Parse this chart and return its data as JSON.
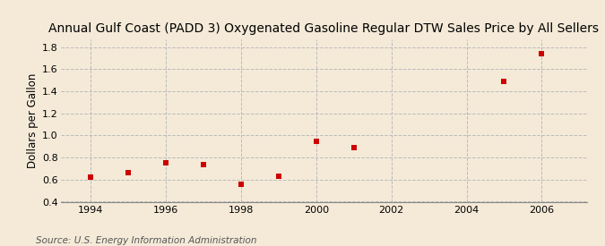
{
  "title": "Annual Gulf Coast (PADD 3) Oxygenated Gasoline Regular DTW Sales Price by All Sellers",
  "ylabel": "Dollars per Gallon",
  "source": "Source: U.S. Energy Information Administration",
  "x": [
    1994,
    1995,
    1996,
    1997,
    1998,
    1999,
    2000,
    2001,
    2005,
    2006
  ],
  "y": [
    0.62,
    0.66,
    0.75,
    0.74,
    0.56,
    0.63,
    0.95,
    0.89,
    1.49,
    1.74
  ],
  "xlim": [
    1993.2,
    2007.2
  ],
  "ylim": [
    0.4,
    1.87
  ],
  "yticks": [
    0.4,
    0.6,
    0.8,
    1.0,
    1.2,
    1.4,
    1.6,
    1.8
  ],
  "xticks": [
    1994,
    1996,
    1998,
    2000,
    2002,
    2004,
    2006
  ],
  "marker_color": "#cc0000",
  "marker": "s",
  "marker_size": 4,
  "background_color": "#f5ead8",
  "grid_color": "#bbbbbb",
  "title_fontsize": 10,
  "label_fontsize": 8.5,
  "tick_fontsize": 8,
  "source_fontsize": 7.5
}
